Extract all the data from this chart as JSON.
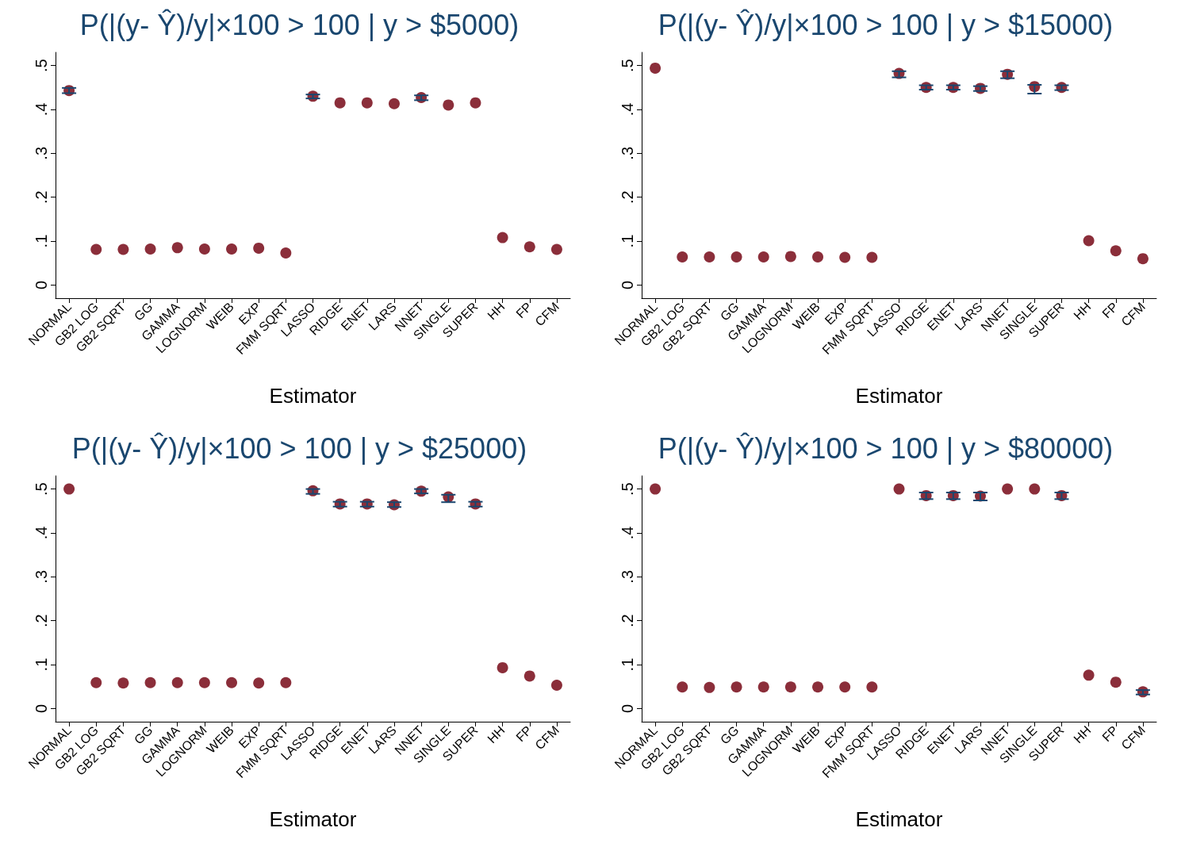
{
  "chart_data": [
    {
      "type": "scatter",
      "title": "P(|(y- Ŷ)/y|×100 > 100 | y > $5000)",
      "xlabel": "Estimator",
      "categories": [
        "NORMAL",
        "GB2 LOG",
        "GB2 SQRT",
        "GG",
        "GAMMA",
        "LOGNORM",
        "WEIB",
        "EXP",
        "FMM SQRT",
        "LASSO",
        "RIDGE",
        "ENET",
        "LARS",
        "NNET",
        "SINGLE",
        "SUPER",
        "HH",
        "FP",
        "CFM"
      ],
      "color": "#8b2e3a",
      "marker": "circle",
      "grid": false,
      "values": [
        0.443,
        0.081,
        0.081,
        0.082,
        0.085,
        0.082,
        0.082,
        0.084,
        0.073,
        0.43,
        0.415,
        0.415,
        0.413,
        0.427,
        0.41,
        0.415,
        0.108,
        0.087,
        0.081
      ],
      "errors": [
        [
          0.437,
          0.449
        ],
        null,
        null,
        null,
        null,
        null,
        null,
        null,
        null,
        [
          0.425,
          0.434
        ],
        null,
        null,
        null,
        [
          0.421,
          0.432
        ],
        null,
        null,
        null,
        null,
        null
      ],
      "ylim": [
        -0.03,
        0.53
      ],
      "yticks": [
        {
          "value": 0,
          "label": "0"
        },
        {
          "value": 0.1,
          "label": ".1"
        },
        {
          "value": 0.2,
          "label": ".2"
        },
        {
          "value": 0.3,
          "label": ".3"
        },
        {
          "value": 0.4,
          "label": ".4"
        },
        {
          "value": 0.5,
          "label": ".5"
        }
      ]
    },
    {
      "type": "scatter",
      "title": "P(|(y- Ŷ)/y|×100 > 100 | y > $15000)",
      "xlabel": "Estimator",
      "categories": [
        "NORMAL",
        "GB2 LOG",
        "GB2 SQRT",
        "GG",
        "GAMMA",
        "LOGNORM",
        "WEIB",
        "EXP",
        "FMM SQRT",
        "LASSO",
        "RIDGE",
        "ENET",
        "LARS",
        "NNET",
        "SINGLE",
        "SUPER",
        "HH",
        "FP",
        "CFM"
      ],
      "color": "#8b2e3a",
      "marker": "circle",
      "grid": false,
      "values": [
        0.494,
        0.064,
        0.064,
        0.064,
        0.064,
        0.065,
        0.064,
        0.063,
        0.063,
        0.482,
        0.45,
        0.45,
        0.448,
        0.48,
        0.452,
        0.45,
        0.101,
        0.078,
        0.06
      ],
      "errors": [
        null,
        null,
        null,
        null,
        null,
        null,
        null,
        null,
        null,
        [
          0.473,
          0.487
        ],
        [
          0.445,
          0.455
        ],
        [
          0.445,
          0.455
        ],
        [
          0.442,
          0.453
        ],
        [
          0.471,
          0.487
        ],
        [
          0.436,
          0.456
        ],
        [
          0.444,
          0.455
        ],
        null,
        null,
        null
      ],
      "ylim": [
        -0.03,
        0.53
      ],
      "yticks": [
        {
          "value": 0,
          "label": "0"
        },
        {
          "value": 0.1,
          "label": ".1"
        },
        {
          "value": 0.2,
          "label": ".2"
        },
        {
          "value": 0.3,
          "label": ".3"
        },
        {
          "value": 0.4,
          "label": ".4"
        },
        {
          "value": 0.5,
          "label": ".5"
        }
      ]
    },
    {
      "type": "scatter",
      "title": "P(|(y- Ŷ)/y|×100 > 100 | y > $25000)",
      "xlabel": "Estimator",
      "categories": [
        "NORMAL",
        "GB2 LOG",
        "GB2 SQRT",
        "GG",
        "GAMMA",
        "LOGNORM",
        "WEIB",
        "EXP",
        "FMM SQRT",
        "LASSO",
        "RIDGE",
        "ENET",
        "LARS",
        "NNET",
        "SINGLE",
        "SUPER",
        "HH",
        "FP",
        "CFM"
      ],
      "color": "#8b2e3a",
      "marker": "circle",
      "grid": false,
      "values": [
        0.5,
        0.059,
        0.058,
        0.059,
        0.059,
        0.059,
        0.059,
        0.058,
        0.059,
        0.496,
        0.466,
        0.466,
        0.464,
        0.495,
        0.482,
        0.466,
        0.093,
        0.074,
        0.053
      ],
      "errors": [
        null,
        null,
        null,
        null,
        null,
        null,
        null,
        null,
        null,
        [
          0.489,
          0.5
        ],
        [
          0.46,
          0.471
        ],
        [
          0.46,
          0.471
        ],
        [
          0.459,
          0.47
        ],
        [
          0.49,
          0.5
        ],
        [
          0.47,
          0.487
        ],
        [
          0.46,
          0.471
        ],
        null,
        null,
        null
      ],
      "ylim": [
        -0.03,
        0.53
      ],
      "yticks": [
        {
          "value": 0,
          "label": "0"
        },
        {
          "value": 0.1,
          "label": ".1"
        },
        {
          "value": 0.2,
          "label": ".2"
        },
        {
          "value": 0.3,
          "label": ".3"
        },
        {
          "value": 0.4,
          "label": ".4"
        },
        {
          "value": 0.5,
          "label": ".5"
        }
      ]
    },
    {
      "type": "scatter",
      "title": "P(|(y- Ŷ)/y|×100 > 100 | y > $80000)",
      "xlabel": "Estimator",
      "categories": [
        "NORMAL",
        "GB2 LOG",
        "GB2 SQRT",
        "GG",
        "GAMMA",
        "LOGNORM",
        "WEIB",
        "EXP",
        "FMM SQRT",
        "LASSO",
        "RIDGE",
        "ENET",
        "LARS",
        "NNET",
        "SINGLE",
        "SUPER",
        "HH",
        "FP",
        "CFM"
      ],
      "color": "#8b2e3a",
      "marker": "circle",
      "grid": false,
      "values": [
        0.5,
        0.049,
        0.048,
        0.049,
        0.049,
        0.049,
        0.049,
        0.049,
        0.049,
        0.5,
        0.485,
        0.485,
        0.484,
        0.5,
        0.5,
        0.485,
        0.076,
        0.06,
        0.038
      ],
      "errors": [
        null,
        null,
        null,
        null,
        null,
        null,
        null,
        null,
        null,
        null,
        [
          0.477,
          0.492
        ],
        [
          0.477,
          0.492
        ],
        [
          0.474,
          0.492
        ],
        null,
        null,
        [
          0.477,
          0.492
        ],
        null,
        null,
        [
          0.032,
          0.042
        ]
      ],
      "ylim": [
        -0.03,
        0.53
      ],
      "yticks": [
        {
          "value": 0,
          "label": "0"
        },
        {
          "value": 0.1,
          "label": ".1"
        },
        {
          "value": 0.2,
          "label": ".2"
        },
        {
          "value": 0.3,
          "label": ".3"
        },
        {
          "value": 0.4,
          "label": ".4"
        },
        {
          "value": 0.5,
          "label": ".5"
        }
      ]
    }
  ]
}
